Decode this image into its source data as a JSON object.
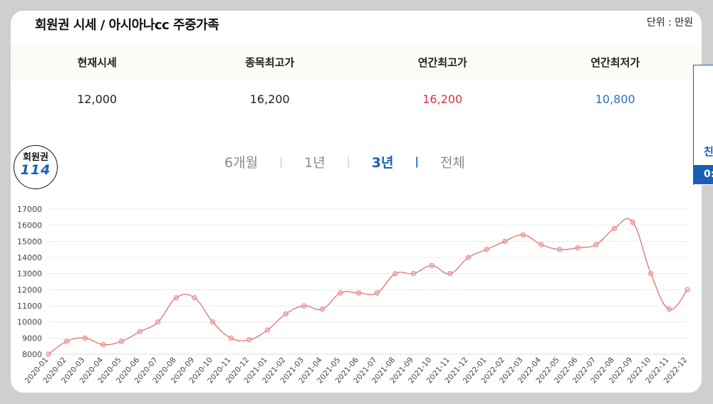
{
  "header": {
    "title": "회원권 시세 / 아시아나cc 주중가족",
    "unit": "단위 : 만원"
  },
  "stats": {
    "labels": [
      "현재시세",
      "종목최고가",
      "연간최고가",
      "연간최저가"
    ],
    "values": [
      "12,000",
      "16,200",
      "16,200",
      "10,800"
    ]
  },
  "logo": {
    "line1": "회원권",
    "line2": "114"
  },
  "periods": {
    "items": [
      "6개월",
      "1년",
      "3년",
      "전체"
    ],
    "active_index": 2
  },
  "side_tab": {
    "text1": "친",
    "text2": "0:"
  },
  "colors": {
    "line": "#e06666",
    "point": "#e88a8a",
    "grid": "#ececec",
    "accent": "#1a5fb4",
    "high": "#d0364a",
    "low": "#2a6fbf"
  },
  "chart_data": {
    "type": "line",
    "title": "",
    "xlabel": "",
    "ylabel": "",
    "ylim": [
      8000,
      17000
    ],
    "yticks": [
      8000,
      9000,
      10000,
      11000,
      12000,
      13000,
      14000,
      15000,
      16000,
      17000
    ],
    "grid": true,
    "x": [
      "2020-01",
      "2020-02",
      "2020-03",
      "2020-04",
      "2020-05",
      "2020-06",
      "2020-07",
      "2020-08",
      "2020-09",
      "2020-10",
      "2020-11",
      "2020-12",
      "2021-01",
      "2021-02",
      "2021-03",
      "2021-04",
      "2021-05",
      "2021-06",
      "2021-07",
      "2021-08",
      "2021-09",
      "2021-10",
      "2021-11",
      "2021-12",
      "2022-01",
      "2022-02",
      "2022-03",
      "2022-04",
      "2022-05",
      "2022-06",
      "2022-07",
      "2022-08",
      "2022-09",
      "2022-10",
      "2022-11",
      "2022-12"
    ],
    "values": [
      8000,
      8800,
      9000,
      8600,
      8800,
      9400,
      10000,
      11500,
      11500,
      10000,
      9000,
      8900,
      9500,
      10500,
      11000,
      10800,
      11800,
      11800,
      11800,
      13000,
      13000,
      13500,
      13000,
      14000,
      14500,
      15000,
      15400,
      14800,
      14500,
      14600,
      14800,
      15800,
      16200,
      13000,
      10800,
      12000
    ]
  }
}
